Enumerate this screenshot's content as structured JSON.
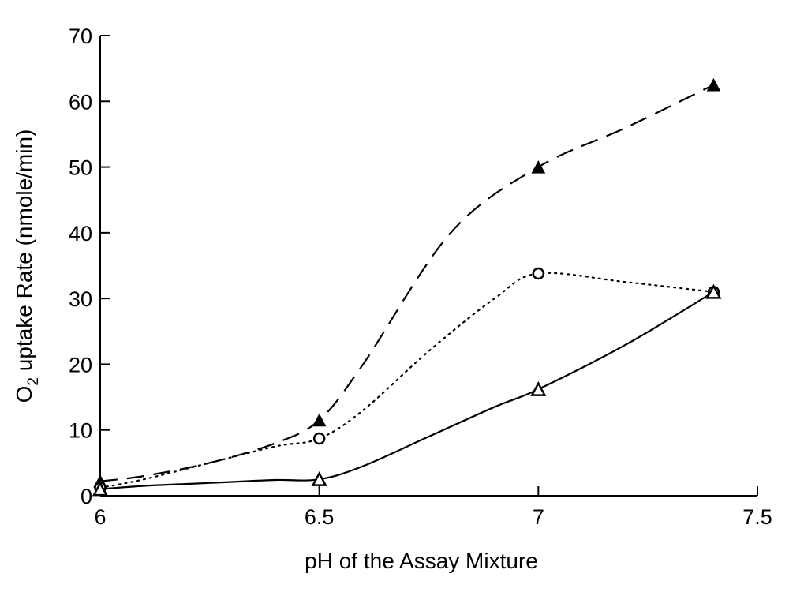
{
  "chart_data": {
    "type": "line",
    "title": "",
    "xlabel": "pH of the Assay Mixture",
    "ylabel_main": "O",
    "ylabel_sub": "2",
    "ylabel_rest": " uptake Rate (nmole/min)",
    "xlim": [
      6,
      7.5
    ],
    "ylim": [
      0,
      70
    ],
    "xticks": [
      6,
      6.5,
      7,
      7.5
    ],
    "xtick_labels": [
      "6",
      "6.5",
      "7",
      "7.5"
    ],
    "yticks": [
      0,
      10,
      20,
      30,
      40,
      50,
      60,
      70
    ],
    "ytick_labels": [
      "0",
      "10",
      "20",
      "30",
      "40",
      "50",
      "60",
      "70"
    ],
    "grid": false,
    "series": [
      {
        "marker": "filled-triangle",
        "line_style": "dashed",
        "x": [
          6,
          6.5,
          7,
          7.4
        ],
        "y": [
          2.2,
          11.5,
          50,
          62.5
        ],
        "curve_y": [
          2.2,
          3,
          5,
          8,
          11.5,
          20,
          40,
          50,
          56,
          62.5
        ],
        "curve_x": [
          6,
          6.1,
          6.25,
          6.4,
          6.5,
          6.6,
          6.8,
          7,
          7.2,
          7.4
        ]
      },
      {
        "marker": "open-circle",
        "line_style": "dotted",
        "x": [
          6,
          6.5,
          7,
          7.4
        ],
        "y": [
          1.2,
          8.7,
          33.8,
          31.0
        ],
        "curve_x": [
          6,
          6.1,
          6.25,
          6.4,
          6.5,
          6.6,
          6.75,
          6.9,
          7,
          7.2,
          7.4
        ],
        "curve_y": [
          1.2,
          2.5,
          5,
          7.5,
          8.7,
          13,
          22,
          30,
          33.8,
          32.5,
          31.0
        ]
      },
      {
        "marker": "open-triangle",
        "line_style": "solid",
        "x": [
          6,
          6.5,
          7,
          7.4
        ],
        "y": [
          1.0,
          2.5,
          16.2,
          31.0
        ],
        "curve_x": [
          6,
          6.1,
          6.2,
          6.3,
          6.4,
          6.5,
          6.6,
          6.75,
          6.9,
          7,
          7.2,
          7.4
        ],
        "curve_y": [
          1.0,
          1.5,
          1.8,
          2.1,
          2.4,
          2.5,
          4.5,
          9,
          13.5,
          16.2,
          23,
          31.0
        ]
      }
    ]
  }
}
